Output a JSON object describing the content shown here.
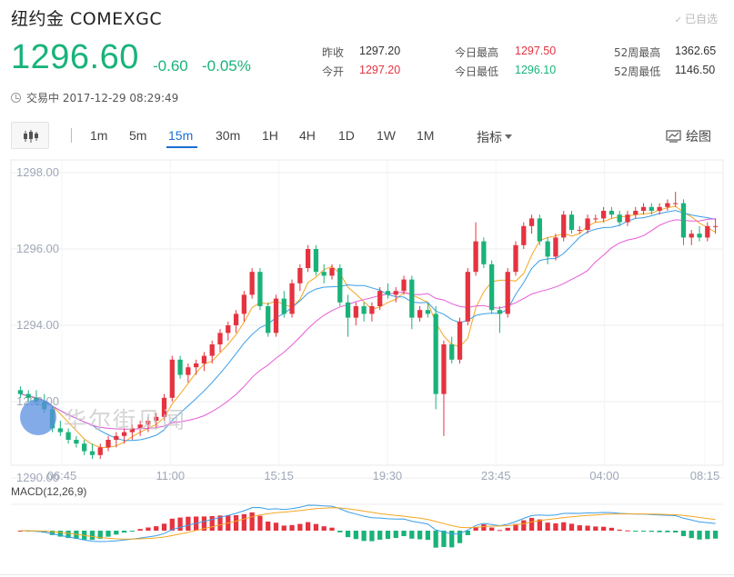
{
  "header": {
    "title": "纽约金  COMEXGC",
    "favorite_label": "已自选"
  },
  "quote": {
    "price": "1296.60",
    "change": "-0.60",
    "change_pct": "-0.05%"
  },
  "stats": [
    {
      "label": "昨收",
      "value": "1297.20",
      "color": "#333333"
    },
    {
      "label": "今开",
      "value": "1297.20",
      "color": "#e5333f"
    },
    {
      "label": "今日最高",
      "value": "1297.50",
      "color": "#e5333f"
    },
    {
      "label": "今日最低",
      "value": "1296.10",
      "color": "#19b37a"
    },
    {
      "label": "52周最高",
      "value": "1362.65",
      "color": "#333333"
    },
    {
      "label": "52周最低",
      "value": "1146.50",
      "color": "#333333"
    }
  ],
  "status": {
    "text": "交易中 2017-12-29 08:29:49"
  },
  "toolbar": {
    "intervals": [
      "1m",
      "5m",
      "15m",
      "30m",
      "1H",
      "4H",
      "1D",
      "1W",
      "1M"
    ],
    "active_interval": "15m",
    "indicator_label": "指标",
    "draw_label": "绘图"
  },
  "watermark": {
    "text": "华尔街见闻"
  },
  "colors": {
    "up": "#e5333f",
    "down": "#19b37a",
    "ma5": "#f5a623",
    "ma10": "#3a9ee8",
    "ma20": "#e75ad8",
    "grid": "#eeeeee",
    "axis_text": "#a0a8b8"
  },
  "chart_data": {
    "type": "candlestick",
    "ylim": [
      1290,
      1298
    ],
    "yticks": [
      "1298.00",
      "1296.00",
      "1294.00",
      "1292.00",
      "1290.00"
    ],
    "xticks": [
      "06:45",
      "11:00",
      "15:15",
      "19:30",
      "23:45",
      "04:00",
      "08:15"
    ],
    "candles": [
      [
        1292.3,
        1292.4,
        1292.1,
        1292.2
      ],
      [
        1292.2,
        1292.3,
        1292.0,
        1292.1
      ],
      [
        1292.1,
        1292.3,
        1291.9,
        1292.0
      ],
      [
        1292.0,
        1292.2,
        1291.7,
        1291.8
      ],
      [
        1291.8,
        1291.9,
        1291.2,
        1291.3
      ],
      [
        1291.3,
        1291.5,
        1291.1,
        1291.2
      ],
      [
        1291.2,
        1291.3,
        1290.9,
        1291.0
      ],
      [
        1291.0,
        1291.1,
        1290.8,
        1290.9
      ],
      [
        1290.9,
        1291.0,
        1290.6,
        1290.7
      ],
      [
        1290.7,
        1290.9,
        1290.5,
        1290.6
      ],
      [
        1290.6,
        1290.9,
        1290.5,
        1290.8
      ],
      [
        1290.8,
        1291.1,
        1290.7,
        1291.0
      ],
      [
        1291.0,
        1291.2,
        1290.8,
        1291.1
      ],
      [
        1291.1,
        1291.3,
        1290.9,
        1291.2
      ],
      [
        1291.2,
        1291.4,
        1291.0,
        1291.3
      ],
      [
        1291.3,
        1291.5,
        1291.1,
        1291.4
      ],
      [
        1291.4,
        1291.6,
        1291.2,
        1291.5
      ],
      [
        1291.5,
        1291.7,
        1291.3,
        1291.6
      ],
      [
        1291.6,
        1292.2,
        1291.5,
        1292.1
      ],
      [
        1292.1,
        1293.2,
        1292.0,
        1293.1
      ],
      [
        1293.1,
        1293.2,
        1292.6,
        1292.7
      ],
      [
        1292.7,
        1293.0,
        1292.5,
        1292.9
      ],
      [
        1292.9,
        1293.1,
        1292.7,
        1293.0
      ],
      [
        1293.0,
        1293.3,
        1292.8,
        1293.2
      ],
      [
        1293.2,
        1293.6,
        1293.0,
        1293.5
      ],
      [
        1293.5,
        1293.9,
        1293.3,
        1293.8
      ],
      [
        1293.8,
        1294.1,
        1293.6,
        1294.0
      ],
      [
        1294.0,
        1294.4,
        1293.8,
        1294.3
      ],
      [
        1294.3,
        1294.9,
        1294.1,
        1294.8
      ],
      [
        1294.8,
        1295.5,
        1294.7,
        1295.4
      ],
      [
        1295.4,
        1295.5,
        1294.4,
        1294.5
      ],
      [
        1294.5,
        1294.6,
        1293.7,
        1293.8
      ],
      [
        1293.8,
        1294.8,
        1293.7,
        1294.7
      ],
      [
        1294.7,
        1294.9,
        1294.2,
        1294.3
      ],
      [
        1294.3,
        1295.2,
        1294.2,
        1295.1
      ],
      [
        1295.1,
        1295.6,
        1294.9,
        1295.5
      ],
      [
        1295.5,
        1296.1,
        1295.4,
        1296.0
      ],
      [
        1296.0,
        1296.1,
        1295.3,
        1295.4
      ],
      [
        1295.4,
        1295.6,
        1295.1,
        1295.3
      ],
      [
        1295.3,
        1295.6,
        1295.2,
        1295.5
      ],
      [
        1295.5,
        1295.6,
        1294.5,
        1294.6
      ],
      [
        1294.6,
        1294.8,
        1293.7,
        1294.2
      ],
      [
        1294.2,
        1294.6,
        1294.0,
        1294.5
      ],
      [
        1294.5,
        1294.6,
        1294.1,
        1294.3
      ],
      [
        1294.3,
        1294.6,
        1294.1,
        1294.5
      ],
      [
        1294.5,
        1295.0,
        1294.4,
        1294.9
      ],
      [
        1294.9,
        1295.1,
        1294.7,
        1294.8
      ],
      [
        1294.8,
        1295.0,
        1294.6,
        1294.9
      ],
      [
        1294.9,
        1295.3,
        1294.8,
        1295.2
      ],
      [
        1295.2,
        1295.3,
        1293.9,
        1294.2
      ],
      [
        1294.2,
        1294.5,
        1294.1,
        1294.4
      ],
      [
        1294.4,
        1294.6,
        1294.2,
        1294.3
      ],
      [
        1294.3,
        1294.5,
        1291.8,
        1292.2
      ],
      [
        1292.2,
        1293.6,
        1291.1,
        1293.5
      ],
      [
        1293.5,
        1293.7,
        1293.0,
        1293.1
      ],
      [
        1293.1,
        1294.2,
        1293.0,
        1294.1
      ],
      [
        1294.1,
        1295.5,
        1294.0,
        1295.4
      ],
      [
        1295.4,
        1296.7,
        1295.3,
        1296.2
      ],
      [
        1296.2,
        1296.3,
        1295.5,
        1295.6
      ],
      [
        1295.6,
        1295.7,
        1294.3,
        1294.4
      ],
      [
        1294.4,
        1294.5,
        1293.8,
        1294.3
      ],
      [
        1294.3,
        1295.5,
        1294.2,
        1295.4
      ],
      [
        1295.4,
        1296.2,
        1295.3,
        1296.1
      ],
      [
        1296.1,
        1296.7,
        1296.0,
        1296.6
      ],
      [
        1296.6,
        1296.9,
        1296.4,
        1296.8
      ],
      [
        1296.8,
        1296.9,
        1296.1,
        1296.2
      ],
      [
        1296.2,
        1296.3,
        1295.6,
        1295.8
      ],
      [
        1295.8,
        1296.4,
        1295.7,
        1296.3
      ],
      [
        1296.3,
        1297.0,
        1296.2,
        1296.9
      ],
      [
        1296.9,
        1297.0,
        1296.4,
        1296.5
      ],
      [
        1296.5,
        1296.6,
        1296.4,
        1296.5
      ],
      [
        1296.5,
        1296.9,
        1296.4,
        1296.8
      ],
      [
        1296.8,
        1296.9,
        1296.7,
        1296.8
      ],
      [
        1296.8,
        1297.1,
        1296.7,
        1297.0
      ],
      [
        1297.0,
        1297.1,
        1296.8,
        1296.9
      ],
      [
        1296.9,
        1297.0,
        1296.6,
        1296.7
      ],
      [
        1296.7,
        1297.0,
        1296.6,
        1296.9
      ],
      [
        1296.9,
        1297.1,
        1296.8,
        1297.0
      ],
      [
        1297.0,
        1297.2,
        1296.9,
        1297.1
      ],
      [
        1297.1,
        1297.2,
        1296.9,
        1297.0
      ],
      [
        1297.0,
        1297.2,
        1296.9,
        1297.1
      ],
      [
        1297.1,
        1297.3,
        1297.0,
        1297.2
      ],
      [
        1297.2,
        1297.5,
        1297.1,
        1297.2
      ],
      [
        1297.2,
        1297.3,
        1296.1,
        1296.3
      ],
      [
        1296.3,
        1296.5,
        1296.1,
        1296.4
      ],
      [
        1296.4,
        1296.6,
        1296.2,
        1296.3
      ],
      [
        1296.3,
        1296.7,
        1296.2,
        1296.6
      ],
      [
        1296.6,
        1296.8,
        1296.4,
        1296.6
      ]
    ],
    "macd_label": "MACD(12,26,9)"
  }
}
